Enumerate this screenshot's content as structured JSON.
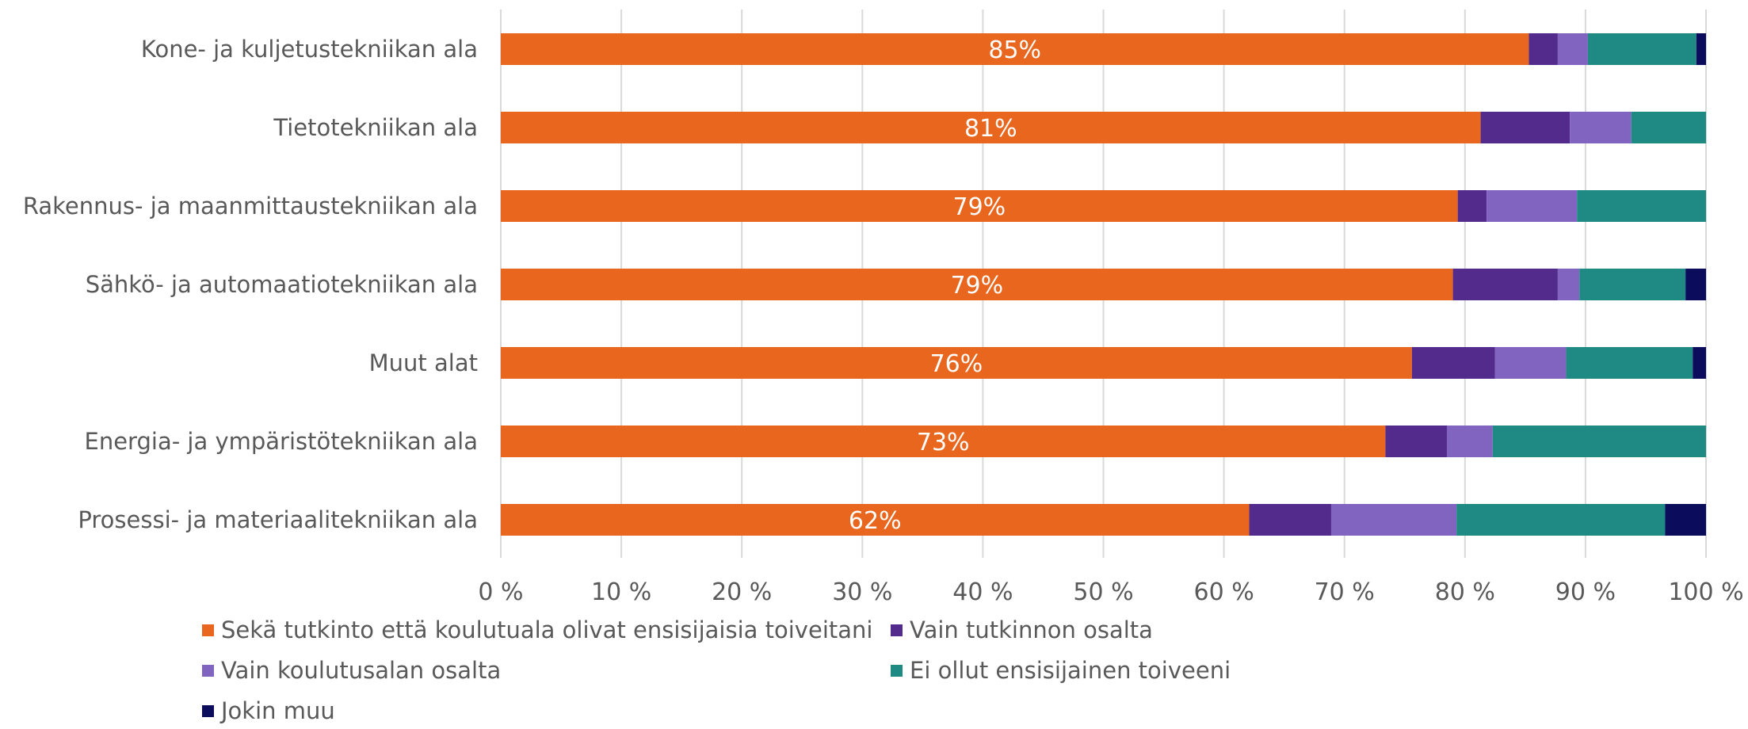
{
  "chart_data": {
    "type": "bar",
    "orientation": "horizontal",
    "stacked": true,
    "percent_stacked": true,
    "categories": [
      "Kone- ja kuljetustekniikan ala",
      "Tietotekniikan ala",
      "Rakennus- ja maanmittaustekniikan ala",
      "Sähkö- ja automaatiotekniikan ala",
      "Muut alat",
      "Energia- ja ympäristötekniikan ala",
      "Prosessi- ja materiaalitekniikan ala"
    ],
    "series": [
      {
        "name": "Sekä tutkinto että koulutuala olivat ensisijaisia toiveitani",
        "color": "#e8661e",
        "values": [
          85.3,
          81.3,
          79.4,
          79.0,
          75.6,
          73.4,
          62.1
        ],
        "labels": [
          "85%",
          "81%",
          "79%",
          "79%",
          "76%",
          "73%",
          "62%"
        ]
      },
      {
        "name": "Vain tutkinnon osalta",
        "color": "#532b8c",
        "values": [
          2.4,
          7.4,
          2.4,
          8.7,
          6.9,
          5.1,
          6.8
        ]
      },
      {
        "name": "Vain koulutusalan osalta",
        "color": "#8064c0",
        "values": [
          2.5,
          5.1,
          7.5,
          1.8,
          5.9,
          3.8,
          10.4
        ]
      },
      {
        "name": "Ei ollut ensisijainen toiveeni",
        "color": "#1f8983",
        "values": [
          9.0,
          6.2,
          10.7,
          8.8,
          10.5,
          17.7,
          17.3
        ]
      },
      {
        "name": "Jokin muu",
        "color": "#0c0c5c",
        "values": [
          0.8,
          0.0,
          0.0,
          1.7,
          1.1,
          0.0,
          3.4
        ]
      }
    ],
    "xlim": [
      0,
      100
    ],
    "xticks": [
      0,
      10,
      20,
      30,
      40,
      50,
      60,
      70,
      80,
      90,
      100
    ],
    "xtick_labels": [
      "0 %",
      "10 %",
      "20 %",
      "30 %",
      "40 %",
      "50 %",
      "60 %",
      "70 %",
      "80 %",
      "90 %",
      "100 %"
    ],
    "grid": true,
    "legend_position": "bottom",
    "title": "",
    "xlabel": "",
    "ylabel": ""
  }
}
